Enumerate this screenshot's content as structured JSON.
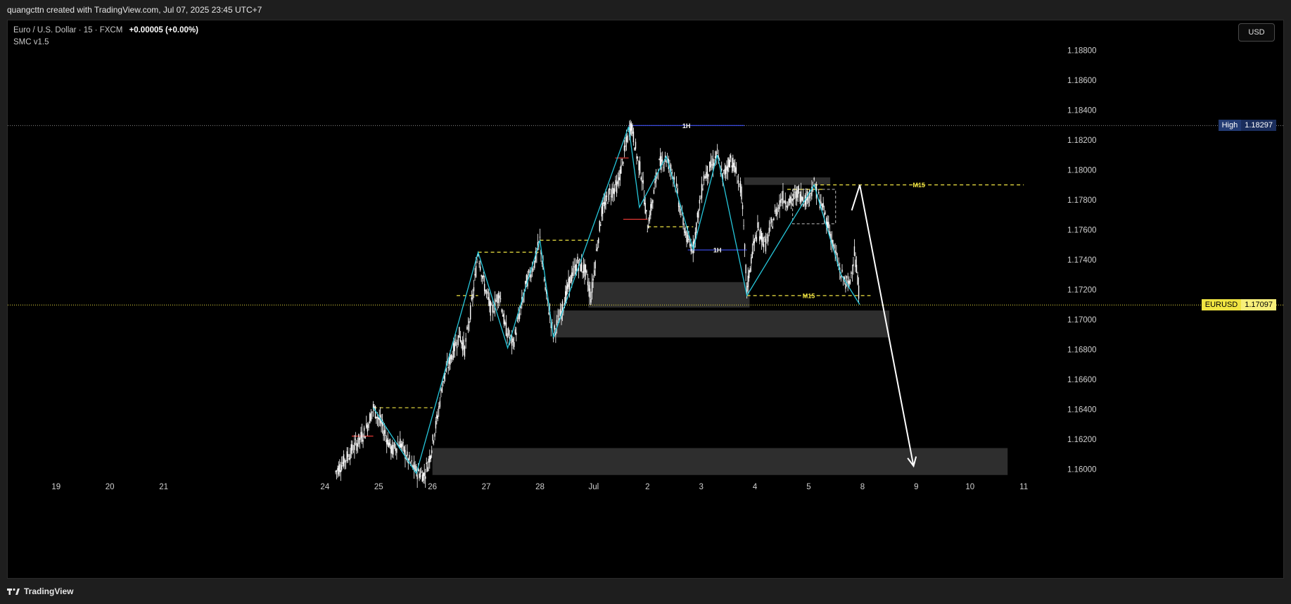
{
  "header": {
    "attribution": "quangcttn created with TradingView.com, Jul 07, 2025 23:45 UTC+7"
  },
  "legend": {
    "symbol_line": "Euro / U.S. Dollar · 15 · FXCM",
    "change": "+0.00005 (+0.00%)",
    "indicator": "SMC v1.5"
  },
  "currency_button": "USD",
  "footer": {
    "brand": "TradingView"
  },
  "colors": {
    "background": "#000000",
    "candles": "#ffffff",
    "swing_line": "#26c6da",
    "level_yellow": "#f0e442",
    "level_blue": "#3f51f5",
    "level_red": "#e53935",
    "zone": "#3a3a3a",
    "high_tag": "#1e3a8a",
    "current_tag": "#f0e442"
  },
  "chart_data": {
    "type": "candlestick",
    "symbol": "EURUSD",
    "timeframe": "15",
    "x_ticks": [
      "19",
      "20",
      "21",
      "24",
      "25",
      "26",
      "27",
      "28",
      "Jul",
      "2",
      "3",
      "4",
      "5",
      "8",
      "9",
      "10",
      "11"
    ],
    "x_tick_positions": [
      19,
      20,
      21,
      24,
      25,
      26,
      27,
      28,
      29,
      30,
      31,
      32,
      33,
      34,
      35,
      36,
      37
    ],
    "y_ticks": [
      "1.18800",
      "1.18600",
      "1.18400",
      "1.18200",
      "1.18000",
      "1.17800",
      "1.17600",
      "1.17400",
      "1.17200",
      "1.17000",
      "1.16800",
      "1.16600",
      "1.16400",
      "1.16200",
      "1.16000"
    ],
    "ylim": [
      1.1594,
      1.19
    ],
    "xlim": [
      18.1,
      37.6
    ],
    "high": {
      "label": "High",
      "value": "1.18297"
    },
    "current": {
      "label": "EURUSD",
      "value": "1.17097"
    },
    "price_path": [
      [
        24.2,
        1.1598
      ],
      [
        24.35,
        1.1605
      ],
      [
        24.55,
        1.1615
      ],
      [
        24.75,
        1.1625
      ],
      [
        24.9,
        1.1641
      ],
      [
        25.05,
        1.163
      ],
      [
        25.25,
        1.1612
      ],
      [
        25.4,
        1.1618
      ],
      [
        25.55,
        1.1606
      ],
      [
        25.7,
        1.1598
      ],
      [
        25.85,
        1.1596
      ],
      [
        25.95,
        1.1608
      ],
      [
        26.1,
        1.1636
      ],
      [
        26.2,
        1.166
      ],
      [
        26.35,
        1.1675
      ],
      [
        26.5,
        1.169
      ],
      [
        26.6,
        1.168
      ],
      [
        26.75,
        1.1715
      ],
      [
        26.85,
        1.1745
      ],
      [
        26.95,
        1.1725
      ],
      [
        27.1,
        1.1705
      ],
      [
        27.25,
        1.1718
      ],
      [
        27.35,
        1.1695
      ],
      [
        27.5,
        1.1683
      ],
      [
        27.6,
        1.17
      ],
      [
        27.75,
        1.1725
      ],
      [
        27.9,
        1.1738
      ],
      [
        28.0,
        1.1753
      ],
      [
        28.1,
        1.172
      ],
      [
        28.25,
        1.169
      ],
      [
        28.4,
        1.1705
      ],
      [
        28.55,
        1.1725
      ],
      [
        28.7,
        1.1738
      ],
      [
        28.85,
        1.1732
      ],
      [
        28.95,
        1.1715
      ],
      [
        29.05,
        1.1745
      ],
      [
        29.15,
        1.1772
      ],
      [
        29.3,
        1.1785
      ],
      [
        29.45,
        1.179
      ],
      [
        29.55,
        1.1808
      ],
      [
        29.65,
        1.1825
      ],
      [
        29.7,
        1.183
      ],
      [
        29.8,
        1.181
      ],
      [
        29.9,
        1.1795
      ],
      [
        30.0,
        1.1762
      ],
      [
        30.1,
        1.178
      ],
      [
        30.2,
        1.1803
      ],
      [
        30.35,
        1.1808
      ],
      [
        30.5,
        1.1795
      ],
      [
        30.6,
        1.1775
      ],
      [
        30.75,
        1.1752
      ],
      [
        30.85,
        1.1748
      ],
      [
        30.95,
        1.1772
      ],
      [
        31.05,
        1.1795
      ],
      [
        31.2,
        1.1803
      ],
      [
        31.3,
        1.181
      ],
      [
        31.4,
        1.1795
      ],
      [
        31.55,
        1.1808
      ],
      [
        31.65,
        1.1798
      ],
      [
        31.75,
        1.1785
      ],
      [
        31.85,
        1.172
      ],
      [
        31.95,
        1.1745
      ],
      [
        32.05,
        1.176
      ],
      [
        32.2,
        1.175
      ],
      [
        32.35,
        1.1768
      ],
      [
        32.5,
        1.1782
      ],
      [
        32.65,
        1.1778
      ],
      [
        32.8,
        1.1785
      ],
      [
        32.95,
        1.178
      ],
      [
        33.1,
        1.179
      ],
      [
        33.25,
        1.1775
      ],
      [
        33.35,
        1.1765
      ],
      [
        33.45,
        1.175
      ],
      [
        33.6,
        1.173
      ],
      [
        33.75,
        1.1722
      ],
      [
        33.85,
        1.1745
      ],
      [
        33.95,
        1.1712
      ]
    ],
    "swing_line": [
      [
        24.9,
        1.1641
      ],
      [
        25.7,
        1.1597
      ],
      [
        26.85,
        1.1745
      ],
      [
        27.4,
        1.1681
      ],
      [
        28.0,
        1.1753
      ],
      [
        28.25,
        1.1688
      ],
      [
        29.65,
        1.1829
      ],
      [
        29.85,
        1.1775
      ],
      [
        30.35,
        1.1809
      ],
      [
        30.85,
        1.1747
      ],
      [
        31.3,
        1.181
      ],
      [
        31.85,
        1.1716
      ],
      [
        33.1,
        1.179
      ],
      [
        33.6,
        1.173
      ],
      [
        33.95,
        1.171
      ]
    ],
    "structure_lines": [
      {
        "x1": 29.65,
        "x2": 31.8,
        "y": 1.18297,
        "color": "blue",
        "style": "solid",
        "label": "1H"
      },
      {
        "x1": 30.75,
        "x2": 31.85,
        "y": 1.17465,
        "color": "blue",
        "style": "solid",
        "label": "1H"
      },
      {
        "x1": 33.1,
        "x2": 37.0,
        "y": 1.179,
        "color": "yellow",
        "style": "dashed",
        "label": "M15"
      },
      {
        "x1": 31.85,
        "x2": 34.15,
        "y": 1.1716,
        "color": "yellow",
        "style": "dashed",
        "label": "M15"
      },
      {
        "x1": 24.9,
        "x2": 26.0,
        "y": 1.1641,
        "color": "yellow",
        "style": "dashed",
        "label": ""
      },
      {
        "x1": 26.85,
        "x2": 28.0,
        "y": 1.1745,
        "color": "yellow",
        "style": "dashed",
        "label": ""
      },
      {
        "x1": 28.0,
        "x2": 29.0,
        "y": 1.1753,
        "color": "yellow",
        "style": "dashed",
        "label": ""
      },
      {
        "x1": 30.0,
        "x2": 30.85,
        "y": 1.1762,
        "color": "yellow",
        "style": "dashed",
        "label": ""
      },
      {
        "x1": 32.6,
        "x2": 33.3,
        "y": 1.1787,
        "color": "yellow",
        "style": "dashed",
        "label": ""
      },
      {
        "x1": 26.45,
        "x2": 26.85,
        "y": 1.1716,
        "color": "yellow",
        "style": "dashed",
        "label": ""
      },
      {
        "x1": 24.5,
        "x2": 24.9,
        "y": 1.1622,
        "color": "red",
        "style": "solid",
        "label": ""
      },
      {
        "x1": 29.4,
        "x2": 29.65,
        "y": 1.1808,
        "color": "red",
        "style": "solid",
        "label": ""
      },
      {
        "x1": 29.55,
        "x2": 30.0,
        "y": 1.1767,
        "color": "red",
        "style": "solid",
        "label": ""
      }
    ],
    "zones": [
      {
        "x1": 26.0,
        "x2": 36.7,
        "y1": 1.1596,
        "y2": 1.1614,
        "style": "solid"
      },
      {
        "x1": 28.25,
        "x2": 34.5,
        "y1": 1.1688,
        "y2": 1.1706,
        "style": "solid"
      },
      {
        "x1": 28.9,
        "x2": 31.9,
        "y1": 1.1708,
        "y2": 1.1725,
        "style": "solid"
      },
      {
        "x1": 31.8,
        "x2": 33.4,
        "y1": 1.179,
        "y2": 1.1795,
        "style": "solid"
      },
      {
        "x1": 32.7,
        "x2": 33.5,
        "y1": 1.1764,
        "y2": 1.1787,
        "style": "dashed"
      }
    ],
    "projection": [
      [
        33.8,
        1.1773
      ],
      [
        33.95,
        1.179
      ],
      [
        34.95,
        1.1602
      ]
    ]
  }
}
